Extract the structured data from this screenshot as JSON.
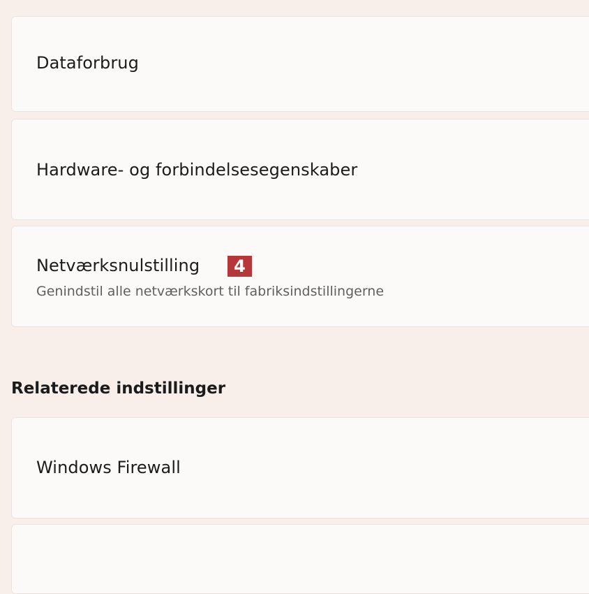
{
  "sections": {
    "items": [
      {
        "title": "Dataforbrug"
      },
      {
        "title": "Hardware- og forbindelsesegenskaber"
      },
      {
        "title": "Netværksnulstilling",
        "subtitle": "Genindstil alle netværkskort til fabriksindstillingerne",
        "badge": "4"
      }
    ],
    "related_header": "Relaterede indstillinger",
    "related": [
      {
        "title": "Windows Firewall"
      }
    ]
  },
  "colors": {
    "background": "#f8efea",
    "card": "#fbfaf8",
    "badge": "#b5373a"
  }
}
